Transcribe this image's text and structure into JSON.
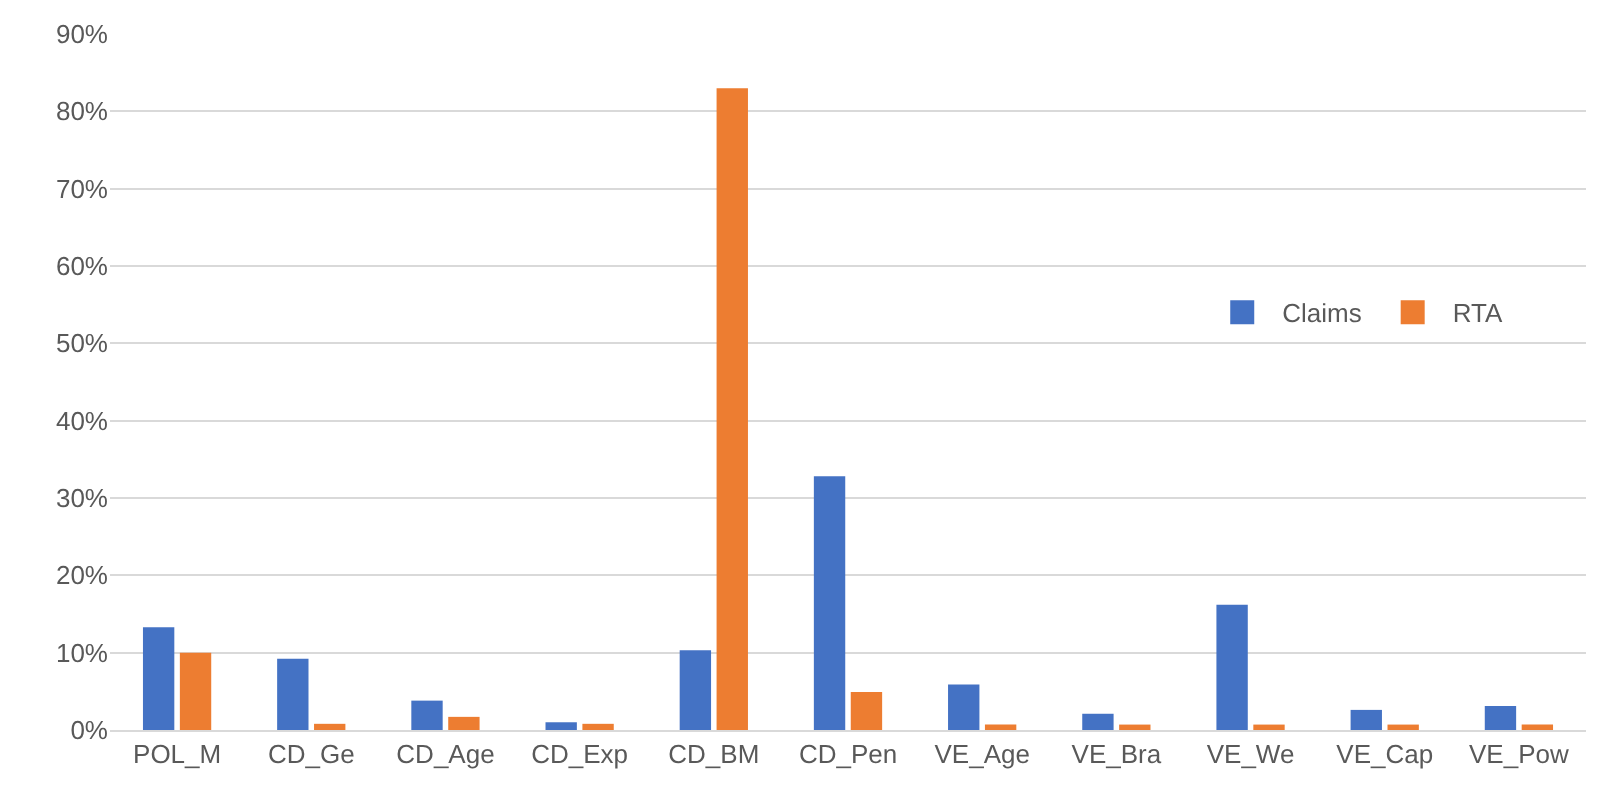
{
  "chart_data": {
    "type": "bar",
    "categories": [
      "POL_M",
      "CD_Ge",
      "CD_Age",
      "CD_Exp",
      "CD_BM",
      "CD_Pen",
      "VE_Age",
      "VE_Bra",
      "VE_We",
      "VE_Cap",
      "VE_Pow"
    ],
    "series": [
      {
        "name": "Claims",
        "color": "#4472c4",
        "values": [
          13.3,
          9.2,
          3.8,
          1.0,
          10.3,
          32.8,
          5.9,
          2.1,
          16.2,
          2.6,
          3.1
        ]
      },
      {
        "name": "RTA",
        "color": "#ed7d31",
        "values": [
          10,
          0.8,
          1.7,
          0.8,
          83,
          4.9,
          0.7,
          0.7,
          0.7,
          0.7,
          0.7
        ]
      }
    ],
    "ylim": [
      0,
      90
    ],
    "yticks": [
      {
        "value": 0,
        "label": "0%"
      },
      {
        "value": 10,
        "label": "10%"
      },
      {
        "value": 20,
        "label": "20%"
      },
      {
        "value": 30,
        "label": "30%"
      },
      {
        "value": 40,
        "label": "40%"
      },
      {
        "value": 50,
        "label": "50%"
      },
      {
        "value": 60,
        "label": "60%"
      },
      {
        "value": 70,
        "label": "70%"
      },
      {
        "value": 80,
        "label": "80%"
      },
      {
        "value": 90,
        "label": "90%"
      }
    ],
    "grid": "y",
    "legend": "right"
  }
}
